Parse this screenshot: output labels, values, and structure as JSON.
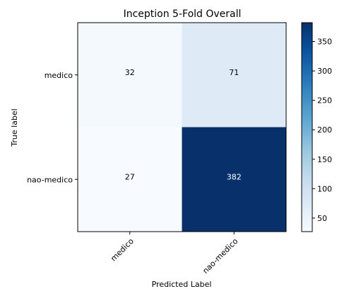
{
  "chart_data": {
    "type": "heatmap",
    "title": "Inception 5-Fold Overall",
    "xlabel": "Predicted Label",
    "ylabel": "True label",
    "row_labels": [
      "medico",
      "nao-medico"
    ],
    "col_labels": [
      "medico",
      "nao-medico"
    ],
    "values": [
      [
        32,
        71
      ],
      [
        27,
        382
      ]
    ],
    "colormap": "Blues",
    "colorbar": {
      "min": 27,
      "max": 382,
      "ticks": [
        50,
        100,
        150,
        200,
        250,
        300,
        350
      ]
    },
    "colors": {
      "low": "#f7fbff",
      "high": "#08306b"
    }
  }
}
